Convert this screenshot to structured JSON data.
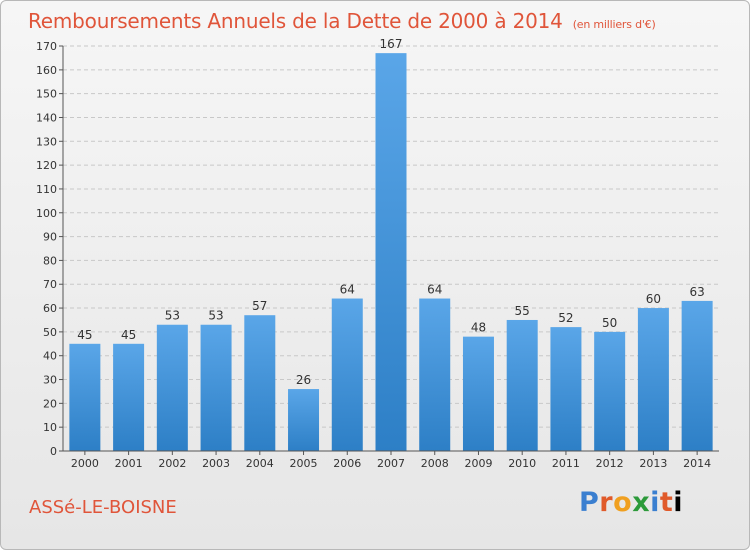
{
  "title": "Remboursements Annuels de la Dette de 2000 à 2014",
  "title_unit": "(en milliers d'€)",
  "commune": "ASSé-LE-BOISNE",
  "logo_letters": [
    "P",
    "r",
    "o",
    "x",
    "i",
    "t",
    "i"
  ],
  "colors": {
    "title": "#e0553a",
    "bar_top": "#5aa6e8",
    "bar_bottom": "#2d7fc6",
    "grid": "#c8c8c8",
    "axis": "#555555"
  },
  "chart_data": {
    "type": "bar",
    "categories": [
      "2000",
      "2001",
      "2002",
      "2003",
      "2004",
      "2005",
      "2006",
      "2007",
      "2008",
      "2009",
      "2010",
      "2011",
      "2012",
      "2013",
      "2014"
    ],
    "values": [
      45,
      45,
      53,
      53,
      57,
      26,
      64,
      167,
      64,
      48,
      55,
      52,
      50,
      60,
      63
    ],
    "yticks": [
      0,
      10,
      20,
      30,
      40,
      50,
      60,
      70,
      80,
      90,
      100,
      110,
      120,
      130,
      140,
      150,
      160,
      170
    ],
    "ylim": [
      0,
      170
    ],
    "grid": true,
    "xlabel": "",
    "ylabel": ""
  }
}
